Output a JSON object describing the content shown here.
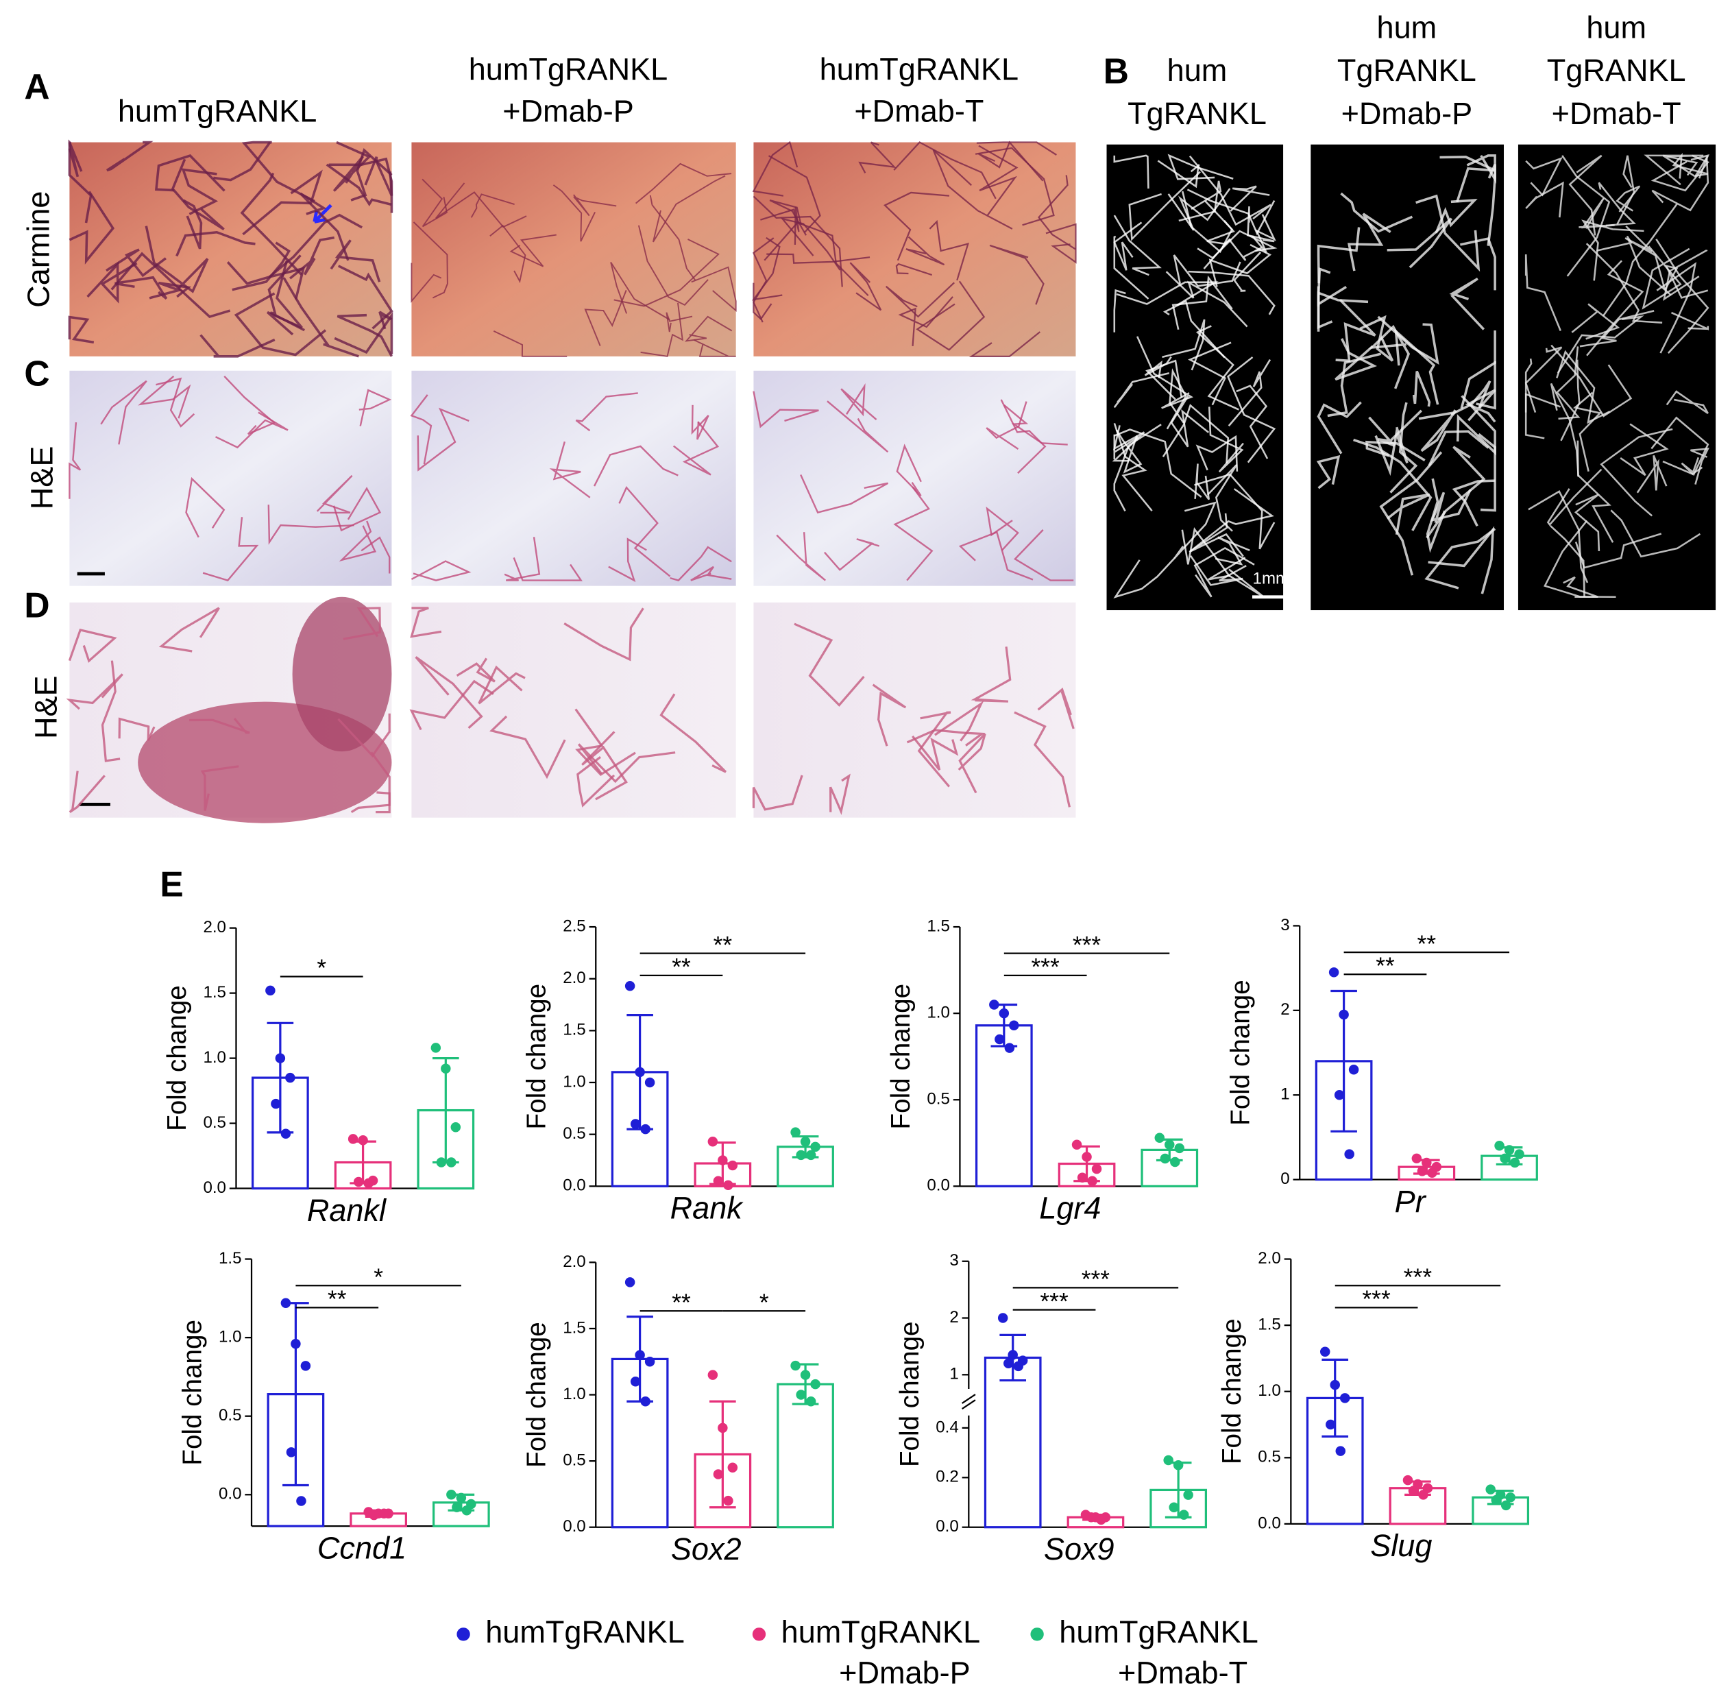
{
  "panel_labels": [
    "A",
    "B",
    "C",
    "D",
    "E"
  ],
  "panel_A": {
    "columns": [
      [
        "humTgRANKL"
      ],
      [
        "humTgRANKL",
        "+Dmab-P"
      ],
      [
        "humTgRANKL",
        "+Dmab-T"
      ]
    ],
    "rows": [
      "Carmine",
      "H&E",
      "H&E"
    ]
  },
  "panel_B": {
    "columns": [
      [
        "hum",
        "TgRANKL"
      ],
      [
        "hum",
        "TgRANKL",
        "+Dmab-P"
      ],
      [
        "hum",
        "TgRANKL",
        "+Dmab-T"
      ]
    ],
    "scale_bar": "1mm"
  },
  "legend": [
    {
      "lines": [
        "humTgRANKL"
      ],
      "color": "#1f1fd6"
    },
    {
      "lines": [
        "humTgRANKL",
        "+Dmab-P"
      ],
      "color": "#e6307a"
    },
    {
      "lines": [
        "humTgRANKL",
        "+Dmab-T"
      ],
      "color": "#1fbf7a"
    }
  ],
  "chart_data": [
    {
      "type": "bar",
      "xlabel": "Rankl",
      "ylabel": "Fold change",
      "ylim": [
        0,
        2
      ],
      "yticks": [
        {
          "value": 0,
          "label": "0.0"
        },
        {
          "value": 0.5,
          "label": "0.5"
        },
        {
          "value": 1,
          "label": "1.0"
        },
        {
          "value": 1.5,
          "label": "1.5"
        },
        {
          "value": 2,
          "label": "2.0"
        }
      ],
      "series": [
        {
          "values": [
            0.85
          ],
          "errors": [
            0.42
          ],
          "points": [
            1.52,
            1.0,
            0.85,
            0.65,
            0.42
          ]
        },
        {
          "values": [
            0.2
          ],
          "errors": [
            0.16
          ],
          "points": [
            0.38,
            0.37,
            0.06,
            0.05,
            0.04
          ]
        },
        {
          "values": [
            0.6
          ],
          "errors": [
            0.4
          ],
          "points": [
            1.08,
            0.92,
            0.47,
            0.2,
            0.2
          ]
        }
      ],
      "annotations": [
        {
          "text": "*",
          "from": 0,
          "to": 1
        }
      ]
    },
    {
      "type": "bar",
      "xlabel": "Rank",
      "ylabel": "Fold change",
      "ylim": [
        0,
        2.5
      ],
      "yticks": [
        {
          "value": 0,
          "label": "0.0"
        },
        {
          "value": 0.5,
          "label": "0.5"
        },
        {
          "value": 1,
          "label": "1.0"
        },
        {
          "value": 1.5,
          "label": "1.5"
        },
        {
          "value": 2,
          "label": "2.0"
        },
        {
          "value": 2.5,
          "label": "2.5"
        }
      ],
      "series": [
        {
          "values": [
            1.1
          ],
          "errors": [
            0.55
          ],
          "points": [
            1.93,
            1.1,
            1.0,
            0.6,
            0.55
          ]
        },
        {
          "values": [
            0.22
          ],
          "errors": [
            0.2
          ],
          "points": [
            0.43,
            0.25,
            0.2,
            0.05,
            0.01
          ]
        },
        {
          "values": [
            0.38
          ],
          "errors": [
            0.1
          ],
          "points": [
            0.52,
            0.43,
            0.38,
            0.3,
            0.3
          ]
        }
      ],
      "annotations": [
        {
          "text": "**",
          "from": 0,
          "to": 1
        },
        {
          "text": "**",
          "from": 0,
          "to": 2
        }
      ]
    },
    {
      "type": "bar",
      "xlabel": "Lgr4",
      "ylabel": "Fold change",
      "ylim": [
        0,
        1.5
      ],
      "yticks": [
        {
          "value": 0,
          "label": "0.0"
        },
        {
          "value": 0.5,
          "label": "0.5"
        },
        {
          "value": 1,
          "label": "1.0"
        },
        {
          "value": 1.5,
          "label": "1.5"
        }
      ],
      "series": [
        {
          "values": [
            0.93
          ],
          "errors": [
            0.12
          ],
          "points": [
            1.05,
            1.0,
            0.93,
            0.85,
            0.8
          ]
        },
        {
          "values": [
            0.13
          ],
          "errors": [
            0.1
          ],
          "points": [
            0.24,
            0.17,
            0.1,
            0.05,
            0.03
          ]
        },
        {
          "values": [
            0.21
          ],
          "errors": [
            0.06
          ],
          "points": [
            0.28,
            0.24,
            0.22,
            0.16,
            0.14
          ]
        }
      ],
      "annotations": [
        {
          "text": "***",
          "from": 0,
          "to": 1
        },
        {
          "text": "***",
          "from": 0,
          "to": 2
        }
      ]
    },
    {
      "type": "bar",
      "xlabel": "Pr",
      "ylabel": "Fold change",
      "ylim": [
        0,
        3
      ],
      "yticks": [
        0,
        1,
        2,
        3
      ],
      "series": [
        {
          "values": [
            1.4
          ],
          "errors": [
            0.83
          ],
          "points": [
            2.45,
            1.95,
            1.3,
            1.0,
            0.3
          ]
        },
        {
          "values": [
            0.15
          ],
          "errors": [
            0.08
          ],
          "points": [
            0.25,
            0.2,
            0.15,
            0.1,
            0.08
          ]
        },
        {
          "values": [
            0.28
          ],
          "errors": [
            0.1
          ],
          "points": [
            0.4,
            0.35,
            0.3,
            0.25,
            0.2
          ]
        }
      ],
      "annotations": [
        {
          "text": "**",
          "from": 0,
          "to": 1
        },
        {
          "text": "**",
          "from": 0,
          "to": 2
        }
      ]
    },
    {
      "type": "bar",
      "xlabel": "Ccnd1",
      "ylabel": "Fold change",
      "ylim": [
        -0.2,
        1.5
      ],
      "yticks": [
        {
          "value": 0,
          "label": "0.0"
        },
        {
          "value": 0.5,
          "label": "0.5"
        },
        {
          "value": 1,
          "label": "1.0"
        },
        {
          "value": 1.5,
          "label": "1.5"
        }
      ],
      "series": [
        {
          "values": [
            0.64
          ],
          "errors": [
            0.58
          ],
          "points": [
            1.22,
            0.96,
            0.82,
            0.27,
            -0.04
          ]
        },
        {
          "values": [
            -0.12
          ],
          "errors": [
            0.02
          ],
          "points": [
            -0.11,
            -0.12,
            -0.12,
            -0.13,
            -0.12
          ]
        },
        {
          "values": [
            -0.05
          ],
          "errors": [
            0.05
          ],
          "points": [
            0.0,
            -0.02,
            -0.06,
            -0.08,
            -0.1
          ]
        }
      ],
      "annotations": [
        {
          "text": "**",
          "from": 0,
          "to": 1
        },
        {
          "text": "*",
          "from": 0,
          "to": 2
        }
      ]
    },
    {
      "type": "bar",
      "xlabel": "Sox2",
      "ylabel": "Fold change",
      "ylim": [
        0,
        2
      ],
      "yticks": [
        {
          "value": 0,
          "label": "0.0"
        },
        {
          "value": 0.5,
          "label": "0.5"
        },
        {
          "value": 1,
          "label": "1.0"
        },
        {
          "value": 1.5,
          "label": "1.5"
        },
        {
          "value": 2,
          "label": "2.0"
        }
      ],
      "series": [
        {
          "values": [
            1.27
          ],
          "errors": [
            0.32
          ],
          "points": [
            1.85,
            1.3,
            1.25,
            1.1,
            0.95
          ]
        },
        {
          "values": [
            0.55
          ],
          "errors": [
            0.4
          ],
          "points": [
            1.15,
            0.75,
            0.45,
            0.4,
            0.2
          ]
        },
        {
          "values": [
            1.08
          ],
          "errors": [
            0.15
          ],
          "points": [
            1.22,
            1.15,
            1.08,
            1.0,
            0.95
          ]
        }
      ],
      "annotations": [
        {
          "text": "**",
          "from": 0,
          "to": 1
        },
        {
          "text": "*",
          "from": 1,
          "to": 2
        }
      ]
    },
    {
      "type": "bar",
      "xlabel": "Sox9",
      "ylabel": "Fold change",
      "segments": [
        {
          "ylim": [
            0,
            0.45
          ],
          "yticks": [
            {
              "value": 0,
              "label": "0.0"
            },
            {
              "value": 0.2,
              "label": "0.2"
            },
            {
              "value": 0.4,
              "label": "0.4"
            }
          ]
        },
        {
          "ylim": [
            0.75,
            3
          ],
          "yticks": [
            1,
            2,
            3
          ]
        }
      ],
      "series": [
        {
          "values": [
            1.3
          ],
          "errors": [
            0.4
          ],
          "points": [
            2.0,
            1.35,
            1.25,
            1.2,
            1.15
          ]
        },
        {
          "values": [
            0.04
          ],
          "errors": [
            0.01
          ],
          "points": [
            0.05,
            0.04,
            0.04,
            0.04,
            0.03
          ]
        },
        {
          "values": [
            0.15
          ],
          "errors": [
            0.11
          ],
          "points": [
            0.27,
            0.25,
            0.13,
            0.08,
            0.05
          ]
        }
      ],
      "annotations": [
        {
          "text": "***",
          "from": 0,
          "to": 1
        },
        {
          "text": "***",
          "from": 0,
          "to": 2
        }
      ]
    },
    {
      "type": "bar",
      "xlabel": "Slug",
      "ylabel": "Fold change",
      "ylim": [
        0,
        2
      ],
      "yticks": [
        {
          "value": 0,
          "label": "0.0"
        },
        {
          "value": 0.5,
          "label": "0.5"
        },
        {
          "value": 1,
          "label": "1.0"
        },
        {
          "value": 1.5,
          "label": "1.5"
        },
        {
          "value": 2,
          "label": "2.0"
        }
      ],
      "series": [
        {
          "values": [
            0.95
          ],
          "errors": [
            0.29
          ],
          "points": [
            1.3,
            1.05,
            0.95,
            0.75,
            0.55
          ]
        },
        {
          "values": [
            0.27
          ],
          "errors": [
            0.05
          ],
          "points": [
            0.33,
            0.3,
            0.27,
            0.25,
            0.22
          ]
        },
        {
          "values": [
            0.2
          ],
          "errors": [
            0.05
          ],
          "points": [
            0.26,
            0.22,
            0.2,
            0.18,
            0.14
          ]
        }
      ],
      "annotations": [
        {
          "text": "***",
          "from": 0,
          "to": 1
        },
        {
          "text": "***",
          "from": 0,
          "to": 2
        }
      ]
    }
  ]
}
